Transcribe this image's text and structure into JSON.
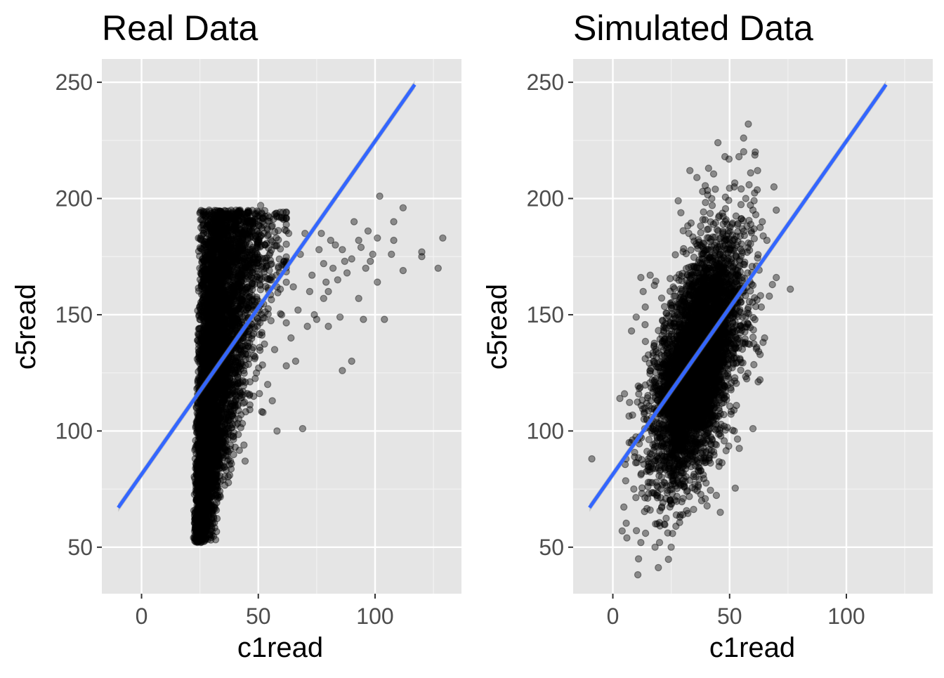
{
  "colors": {
    "panel_background": "#e5e5e5",
    "grid_major": "#ffffff",
    "grid_minor": "#f2f2f2",
    "points": "#000000",
    "regression_line": "#3366ff",
    "confidence_band": "#999999",
    "axis_text": "#4d4d4d"
  },
  "chart_data": [
    {
      "type": "scatter",
      "title": "Real Data",
      "xlabel": "c1read",
      "ylabel": "c5read",
      "xlim": [
        -17,
        137
      ],
      "ylim": [
        30,
        260
      ],
      "xticks": [
        0,
        50,
        100
      ],
      "yticks": [
        50,
        100,
        150,
        200,
        250
      ],
      "grid": true,
      "point_alpha": 0.4,
      "n_points": 5000,
      "bulk_cloud": {
        "description_free": true,
        "x_range": [
          22,
          52
        ],
        "y_range": [
          52,
          195
        ],
        "relation": "steep positive"
      },
      "outlier_points": [
        {
          "x": 129,
          "y": 183
        },
        {
          "x": 127,
          "y": 170
        },
        {
          "x": 120,
          "y": 177
        },
        {
          "x": 120,
          "y": 175
        },
        {
          "x": 112,
          "y": 196
        },
        {
          "x": 112,
          "y": 169
        },
        {
          "x": 108,
          "y": 182
        },
        {
          "x": 107,
          "y": 176
        },
        {
          "x": 102,
          "y": 201
        },
        {
          "x": 101,
          "y": 183
        },
        {
          "x": 101,
          "y": 164
        },
        {
          "x": 99,
          "y": 176
        },
        {
          "x": 98,
          "y": 173
        },
        {
          "x": 97,
          "y": 186
        },
        {
          "x": 96,
          "y": 170
        },
        {
          "x": 94,
          "y": 179
        },
        {
          "x": 93,
          "y": 157
        },
        {
          "x": 93,
          "y": 182
        },
        {
          "x": 91,
          "y": 190
        },
        {
          "x": 90,
          "y": 174
        },
        {
          "x": 88,
          "y": 168
        },
        {
          "x": 87,
          "y": 173
        },
        {
          "x": 86,
          "y": 178
        },
        {
          "x": 86,
          "y": 126
        },
        {
          "x": 85,
          "y": 149
        },
        {
          "x": 84,
          "y": 165
        },
        {
          "x": 83,
          "y": 180
        },
        {
          "x": 82,
          "y": 170
        },
        {
          "x": 81,
          "y": 182
        },
        {
          "x": 80,
          "y": 160
        },
        {
          "x": 80,
          "y": 145
        },
        {
          "x": 78,
          "y": 172
        },
        {
          "x": 78,
          "y": 157
        },
        {
          "x": 77,
          "y": 185
        },
        {
          "x": 76,
          "y": 178
        },
        {
          "x": 74,
          "y": 150
        },
        {
          "x": 73,
          "y": 167
        },
        {
          "x": 72,
          "y": 160
        },
        {
          "x": 71,
          "y": 145
        },
        {
          "x": 70,
          "y": 185
        },
        {
          "x": 69,
          "y": 101
        },
        {
          "x": 68,
          "y": 176
        },
        {
          "x": 67,
          "y": 152
        },
        {
          "x": 66,
          "y": 130
        },
        {
          "x": 65,
          "y": 162
        },
        {
          "x": 64,
          "y": 140
        },
        {
          "x": 63,
          "y": 185
        },
        {
          "x": 62,
          "y": 128
        },
        {
          "x": 61,
          "y": 173
        },
        {
          "x": 60,
          "y": 150
        },
        {
          "x": 59,
          "y": 192
        },
        {
          "x": 58,
          "y": 100
        },
        {
          "x": 57,
          "y": 135
        },
        {
          "x": 56,
          "y": 113
        },
        {
          "x": 55,
          "y": 165
        },
        {
          "x": 54,
          "y": 120
        },
        {
          "x": 52,
          "y": 108
        },
        {
          "x": 51,
          "y": 197
        },
        {
          "x": 95,
          "y": 148
        },
        {
          "x": 90,
          "y": 130
        },
        {
          "x": 104,
          "y": 148
        },
        {
          "x": 108,
          "y": 190
        },
        {
          "x": 79,
          "y": 164
        },
        {
          "x": 75,
          "y": 148
        },
        {
          "x": 29,
          "y": 195
        },
        {
          "x": 36,
          "y": 193
        },
        {
          "x": 53,
          "y": 180
        },
        {
          "x": 46,
          "y": 194
        }
      ],
      "regression": {
        "x": [
          -10,
          117
        ],
        "y": [
          67,
          249
        ],
        "band_halfwidth_at_ends": 1.8
      },
      "seed": 7
    },
    {
      "type": "scatter",
      "title": "Simulated Data",
      "xlabel": "c1read",
      "ylabel": "c5read",
      "xlim": [
        -17,
        137
      ],
      "ylim": [
        30,
        260
      ],
      "xticks": [
        0,
        50,
        100
      ],
      "yticks": [
        50,
        100,
        150,
        200,
        250
      ],
      "grid": true,
      "point_alpha": 0.4,
      "n_points": 5000,
      "bulk_cloud": {
        "x_center": 36,
        "y_center": 130,
        "x_sd": 9.5,
        "y_sd": 25,
        "correlation": 0.55
      },
      "outlier_points": [
        {
          "x": -9,
          "y": 88
        },
        {
          "x": 3,
          "y": 114
        },
        {
          "x": 4,
          "y": 57
        },
        {
          "x": 6,
          "y": 54
        },
        {
          "x": 5,
          "y": 116
        },
        {
          "x": 8,
          "y": 143
        },
        {
          "x": 11,
          "y": 45
        },
        {
          "x": 12,
          "y": 166
        },
        {
          "x": 13,
          "y": 160
        },
        {
          "x": 10,
          "y": 149
        },
        {
          "x": 12,
          "y": 52
        },
        {
          "x": 14,
          "y": 56
        },
        {
          "x": 16,
          "y": 167
        },
        {
          "x": 20,
          "y": 52
        },
        {
          "x": 25,
          "y": 50
        },
        {
          "x": 27,
          "y": 59
        },
        {
          "x": 28,
          "y": 199
        },
        {
          "x": 36,
          "y": 209
        },
        {
          "x": 41,
          "y": 213
        },
        {
          "x": 45,
          "y": 224
        },
        {
          "x": 48,
          "y": 218
        },
        {
          "x": 56,
          "y": 226
        },
        {
          "x": 58,
          "y": 232
        },
        {
          "x": 54,
          "y": 218
        },
        {
          "x": 59,
          "y": 211
        },
        {
          "x": 61,
          "y": 220
        },
        {
          "x": 62,
          "y": 212
        },
        {
          "x": 60,
          "y": 195
        },
        {
          "x": 64,
          "y": 190
        },
        {
          "x": 66,
          "y": 182
        },
        {
          "x": 70,
          "y": 195
        },
        {
          "x": 76,
          "y": 161
        },
        {
          "x": 70,
          "y": 166
        },
        {
          "x": 67,
          "y": 158
        },
        {
          "x": 65,
          "y": 140
        },
        {
          "x": 63,
          "y": 122
        },
        {
          "x": 60,
          "y": 101
        },
        {
          "x": 52,
          "y": 100
        },
        {
          "x": 46,
          "y": 65
        },
        {
          "x": 38,
          "y": 70
        },
        {
          "x": 30,
          "y": 64
        },
        {
          "x": 19,
          "y": 60
        },
        {
          "x": 16,
          "y": 66
        },
        {
          "x": 9,
          "y": 75
        },
        {
          "x": 7,
          "y": 95
        },
        {
          "x": 69,
          "y": 205
        },
        {
          "x": 52,
          "y": 205
        },
        {
          "x": 33,
          "y": 212
        }
      ],
      "regression": {
        "x": [
          -10,
          117
        ],
        "y": [
          67,
          249
        ],
        "band_halfwidth_at_ends": 1.8
      },
      "seed": 13
    }
  ]
}
